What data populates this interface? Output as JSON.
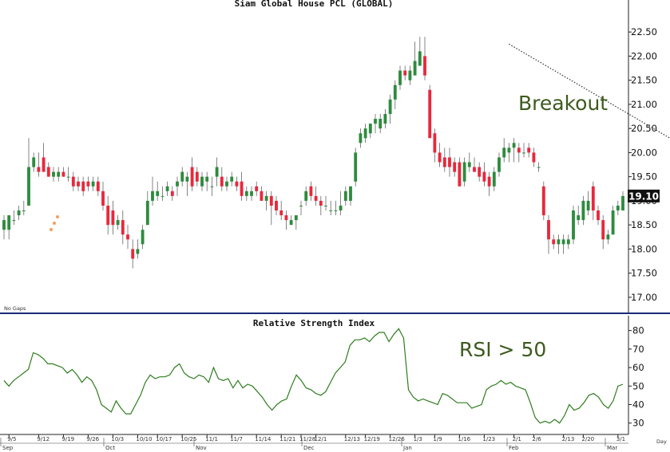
{
  "chart_data": [
    {
      "type": "candlestick",
      "title": "Siam Global House PCL (GLOBAL)",
      "y_ticks": [
        "22.50",
        "22.00",
        "21.50",
        "21.00",
        "20.50",
        "20.00",
        "19.50",
        "19.00",
        "18.50",
        "18.00",
        "17.50",
        "17.00"
      ],
      "ylim": [
        16.8,
        22.8
      ],
      "last_price_label": "19.10",
      "footnote": "No Gaps",
      "annotation": "Breakout",
      "colors": {
        "up": "#2e8b3e",
        "down": "#e8283c",
        "trend": "#333333",
        "arrow": "#3d6b22",
        "dots": "#f0a060",
        "label_bg": "#111111"
      },
      "trendline": {
        "from": [
          102,
          22.25
        ],
        "to": [
          162,
          18.65
        ]
      },
      "candles": [
        {
          "o": 18.4,
          "h": 18.7,
          "l": 18.2,
          "c": 18.6
        },
        {
          "o": 18.4,
          "h": 18.7,
          "l": 18.2,
          "c": 18.7
        },
        {
          "o": 18.6,
          "h": 18.8,
          "l": 18.5,
          "c": 18.6
        },
        {
          "o": 18.7,
          "h": 18.9,
          "l": 18.6,
          "c": 18.8
        },
        {
          "o": 18.8,
          "h": 19.0,
          "l": 18.7,
          "c": 18.8
        },
        {
          "o": 18.9,
          "h": 20.3,
          "l": 18.9,
          "c": 19.7
        },
        {
          "o": 19.7,
          "h": 20.0,
          "l": 19.6,
          "c": 19.9
        },
        {
          "o": 19.7,
          "h": 20.0,
          "l": 19.5,
          "c": 19.6
        },
        {
          "o": 19.9,
          "h": 20.2,
          "l": 19.6,
          "c": 19.6
        },
        {
          "o": 19.7,
          "h": 19.8,
          "l": 19.5,
          "c": 19.5
        },
        {
          "o": 19.5,
          "h": 19.7,
          "l": 19.4,
          "c": 19.6
        },
        {
          "o": 19.5,
          "h": 19.7,
          "l": 19.4,
          "c": 19.6
        },
        {
          "o": 19.6,
          "h": 19.7,
          "l": 19.5,
          "c": 19.5
        },
        {
          "o": 19.5,
          "h": 19.7,
          "l": 19.4,
          "c": 19.5
        },
        {
          "o": 19.5,
          "h": 19.6,
          "l": 19.2,
          "c": 19.3
        },
        {
          "o": 19.4,
          "h": 19.5,
          "l": 19.2,
          "c": 19.3
        },
        {
          "o": 19.4,
          "h": 19.5,
          "l": 19.1,
          "c": 19.2
        },
        {
          "o": 19.4,
          "h": 19.5,
          "l": 19.2,
          "c": 19.3
        },
        {
          "o": 19.3,
          "h": 19.5,
          "l": 19.2,
          "c": 19.4
        },
        {
          "o": 19.4,
          "h": 19.5,
          "l": 19.1,
          "c": 19.2
        },
        {
          "o": 19.2,
          "h": 19.4,
          "l": 18.8,
          "c": 18.9
        },
        {
          "o": 18.9,
          "h": 19.1,
          "l": 18.3,
          "c": 18.5
        },
        {
          "o": 18.8,
          "h": 19.0,
          "l": 18.3,
          "c": 18.5
        },
        {
          "o": 18.5,
          "h": 18.7,
          "l": 18.4,
          "c": 18.6
        },
        {
          "o": 18.6,
          "h": 18.8,
          "l": 18.1,
          "c": 18.3
        },
        {
          "o": 18.3,
          "h": 18.5,
          "l": 18.0,
          "c": 18.2
        },
        {
          "o": 18.0,
          "h": 18.2,
          "l": 17.6,
          "c": 17.8
        },
        {
          "o": 17.9,
          "h": 18.2,
          "l": 17.8,
          "c": 18.0
        },
        {
          "o": 18.1,
          "h": 18.5,
          "l": 18.0,
          "c": 18.4
        },
        {
          "o": 18.5,
          "h": 19.2,
          "l": 18.5,
          "c": 19.0
        },
        {
          "o": 19.0,
          "h": 19.5,
          "l": 18.9,
          "c": 19.2
        },
        {
          "o": 19.1,
          "h": 19.4,
          "l": 19.0,
          "c": 19.2
        },
        {
          "o": 19.1,
          "h": 19.3,
          "l": 19.0,
          "c": 19.1
        },
        {
          "o": 19.2,
          "h": 19.4,
          "l": 19.1,
          "c": 19.3
        },
        {
          "o": 19.2,
          "h": 19.3,
          "l": 19.0,
          "c": 19.1
        },
        {
          "o": 19.3,
          "h": 19.5,
          "l": 19.1,
          "c": 19.4
        },
        {
          "o": 19.4,
          "h": 19.7,
          "l": 19.3,
          "c": 19.6
        },
        {
          "o": 19.4,
          "h": 19.6,
          "l": 19.1,
          "c": 19.5
        },
        {
          "o": 19.7,
          "h": 19.9,
          "l": 19.2,
          "c": 19.3
        },
        {
          "o": 19.6,
          "h": 19.7,
          "l": 19.3,
          "c": 19.4
        },
        {
          "o": 19.3,
          "h": 19.6,
          "l": 19.2,
          "c": 19.5
        },
        {
          "o": 19.4,
          "h": 19.6,
          "l": 19.2,
          "c": 19.5
        },
        {
          "o": 19.3,
          "h": 19.5,
          "l": 19.1,
          "c": 19.3
        },
        {
          "o": 19.5,
          "h": 19.9,
          "l": 19.3,
          "c": 19.7
        },
        {
          "o": 19.5,
          "h": 19.7,
          "l": 19.2,
          "c": 19.3
        },
        {
          "o": 19.3,
          "h": 19.5,
          "l": 19.2,
          "c": 19.4
        },
        {
          "o": 19.4,
          "h": 19.6,
          "l": 19.3,
          "c": 19.5
        },
        {
          "o": 19.4,
          "h": 19.5,
          "l": 19.2,
          "c": 19.3
        },
        {
          "o": 19.4,
          "h": 19.6,
          "l": 19.0,
          "c": 19.1
        },
        {
          "o": 19.1,
          "h": 19.3,
          "l": 19.0,
          "c": 19.2
        },
        {
          "o": 19.1,
          "h": 19.3,
          "l": 19.0,
          "c": 19.2
        },
        {
          "o": 19.3,
          "h": 19.4,
          "l": 19.1,
          "c": 19.2
        },
        {
          "o": 19.2,
          "h": 19.3,
          "l": 19.0,
          "c": 19.0
        },
        {
          "o": 19.0,
          "h": 19.2,
          "l": 18.8,
          "c": 19.1
        },
        {
          "o": 19.1,
          "h": 19.2,
          "l": 18.5,
          "c": 18.9
        },
        {
          "o": 19.0,
          "h": 19.1,
          "l": 18.7,
          "c": 18.8
        },
        {
          "o": 18.8,
          "h": 19.0,
          "l": 18.6,
          "c": 18.7
        },
        {
          "o": 18.7,
          "h": 18.8,
          "l": 18.4,
          "c": 18.6
        },
        {
          "o": 18.5,
          "h": 18.7,
          "l": 18.5,
          "c": 18.6
        },
        {
          "o": 18.6,
          "h": 18.7,
          "l": 18.4,
          "c": 18.7
        },
        {
          "o": 18.9,
          "h": 19.0,
          "l": 18.7,
          "c": 18.9
        },
        {
          "o": 19.0,
          "h": 19.3,
          "l": 18.9,
          "c": 19.2
        },
        {
          "o": 19.3,
          "h": 19.4,
          "l": 19.0,
          "c": 19.1
        },
        {
          "o": 19.1,
          "h": 19.3,
          "l": 18.9,
          "c": 19.0
        },
        {
          "o": 19.0,
          "h": 19.1,
          "l": 18.7,
          "c": 18.9
        },
        {
          "o": 18.9,
          "h": 19.1,
          "l": 18.8,
          "c": 18.9
        },
        {
          "o": 18.8,
          "h": 19.0,
          "l": 18.7,
          "c": 18.8
        },
        {
          "o": 18.8,
          "h": 19.0,
          "l": 18.7,
          "c": 18.8
        },
        {
          "o": 18.8,
          "h": 19.2,
          "l": 18.7,
          "c": 18.9
        },
        {
          "o": 19.0,
          "h": 19.3,
          "l": 18.9,
          "c": 19.2
        },
        {
          "o": 19.0,
          "h": 19.3,
          "l": 18.9,
          "c": 19.3
        },
        {
          "o": 19.4,
          "h": 20.1,
          "l": 19.3,
          "c": 20.0
        },
        {
          "o": 20.2,
          "h": 20.5,
          "l": 20.1,
          "c": 20.4
        },
        {
          "o": 20.3,
          "h": 20.6,
          "l": 20.2,
          "c": 20.5
        },
        {
          "o": 20.4,
          "h": 20.6,
          "l": 20.3,
          "c": 20.6
        },
        {
          "o": 20.6,
          "h": 20.8,
          "l": 20.4,
          "c": 20.7
        },
        {
          "o": 20.5,
          "h": 20.8,
          "l": 20.4,
          "c": 20.7
        },
        {
          "o": 20.6,
          "h": 20.9,
          "l": 20.5,
          "c": 20.8
        },
        {
          "o": 20.8,
          "h": 21.2,
          "l": 20.6,
          "c": 21.1
        },
        {
          "o": 21.1,
          "h": 21.5,
          "l": 20.9,
          "c": 21.4
        },
        {
          "o": 21.4,
          "h": 21.8,
          "l": 21.3,
          "c": 21.7
        },
        {
          "o": 21.7,
          "h": 21.8,
          "l": 21.5,
          "c": 21.6
        },
        {
          "o": 21.5,
          "h": 21.8,
          "l": 21.4,
          "c": 21.7
        },
        {
          "o": 21.6,
          "h": 22.3,
          "l": 21.6,
          "c": 21.9
        },
        {
          "o": 21.8,
          "h": 22.4,
          "l": 21.8,
          "c": 22.1
        },
        {
          "o": 22.0,
          "h": 22.4,
          "l": 21.5,
          "c": 21.6
        },
        {
          "o": 21.3,
          "h": 21.4,
          "l": 20.3,
          "c": 20.3
        },
        {
          "o": 20.4,
          "h": 20.5,
          "l": 19.8,
          "c": 20.0
        },
        {
          "o": 20.0,
          "h": 20.2,
          "l": 19.7,
          "c": 19.8
        },
        {
          "o": 19.9,
          "h": 20.1,
          "l": 19.6,
          "c": 19.7
        },
        {
          "o": 19.9,
          "h": 20.1,
          "l": 19.5,
          "c": 19.7
        },
        {
          "o": 19.8,
          "h": 19.9,
          "l": 19.5,
          "c": 19.6
        },
        {
          "o": 19.8,
          "h": 19.9,
          "l": 19.3,
          "c": 19.3
        },
        {
          "o": 19.4,
          "h": 19.9,
          "l": 19.3,
          "c": 19.8
        },
        {
          "o": 19.7,
          "h": 20.0,
          "l": 19.6,
          "c": 19.8
        },
        {
          "o": 19.7,
          "h": 19.9,
          "l": 19.6,
          "c": 19.6
        },
        {
          "o": 19.7,
          "h": 19.8,
          "l": 19.4,
          "c": 19.5
        },
        {
          "o": 19.6,
          "h": 19.8,
          "l": 19.3,
          "c": 19.4
        },
        {
          "o": 19.5,
          "h": 19.6,
          "l": 19.1,
          "c": 19.3
        },
        {
          "o": 19.3,
          "h": 19.7,
          "l": 19.2,
          "c": 19.6
        },
        {
          "o": 19.6,
          "h": 20.0,
          "l": 19.5,
          "c": 19.9
        },
        {
          "o": 19.9,
          "h": 20.3,
          "l": 19.8,
          "c": 20.1
        },
        {
          "o": 20.0,
          "h": 20.2,
          "l": 19.8,
          "c": 20.1
        },
        {
          "o": 20.1,
          "h": 20.3,
          "l": 19.8,
          "c": 20.2
        },
        {
          "o": 20.1,
          "h": 20.2,
          "l": 19.8,
          "c": 20.0
        },
        {
          "o": 20.0,
          "h": 20.2,
          "l": 19.9,
          "c": 20.0
        },
        {
          "o": 20.1,
          "h": 20.2,
          "l": 19.9,
          "c": 20.0
        },
        {
          "o": 20.0,
          "h": 20.1,
          "l": 19.7,
          "c": 19.8
        },
        {
          "o": 19.7,
          "h": 19.8,
          "l": 19.6,
          "c": 19.7
        },
        {
          "o": 19.3,
          "h": 19.4,
          "l": 18.6,
          "c": 18.7
        },
        {
          "o": 18.6,
          "h": 18.7,
          "l": 17.9,
          "c": 18.2
        },
        {
          "o": 18.2,
          "h": 18.3,
          "l": 18.0,
          "c": 18.1
        },
        {
          "o": 18.1,
          "h": 18.3,
          "l": 17.9,
          "c": 18.2
        },
        {
          "o": 18.1,
          "h": 18.3,
          "l": 17.9,
          "c": 18.2
        },
        {
          "o": 18.1,
          "h": 18.3,
          "l": 18.0,
          "c": 18.2
        },
        {
          "o": 18.2,
          "h": 18.9,
          "l": 18.1,
          "c": 18.8
        },
        {
          "o": 18.6,
          "h": 18.9,
          "l": 18.5,
          "c": 18.7
        },
        {
          "o": 18.6,
          "h": 19.1,
          "l": 18.5,
          "c": 19.0
        },
        {
          "o": 18.8,
          "h": 19.2,
          "l": 18.7,
          "c": 19.0
        },
        {
          "o": 19.3,
          "h": 19.4,
          "l": 18.6,
          "c": 18.8
        },
        {
          "o": 18.8,
          "h": 18.9,
          "l": 18.5,
          "c": 18.6
        },
        {
          "o": 18.6,
          "h": 18.7,
          "l": 18.0,
          "c": 18.2
        },
        {
          "o": 18.2,
          "h": 18.4,
          "l": 18.1,
          "c": 18.3
        },
        {
          "o": 18.3,
          "h": 18.9,
          "l": 18.3,
          "c": 18.8
        },
        {
          "o": 18.8,
          "h": 19.0,
          "l": 18.7,
          "c": 18.9
        },
        {
          "o": 18.8,
          "h": 19.2,
          "l": 18.8,
          "c": 19.1
        }
      ]
    },
    {
      "type": "line",
      "title": "Relative Strength Index",
      "y_ticks": [
        "80",
        "70",
        "60",
        "50",
        "40",
        "30"
      ],
      "ylim": [
        26,
        82
      ],
      "annotation": "RSI > 50",
      "colors": {
        "line": "#2e7d1e"
      },
      "values": [
        53,
        50,
        53,
        55,
        57,
        59,
        68,
        67,
        65,
        62,
        62,
        61,
        60,
        57,
        59,
        56,
        52,
        55,
        53,
        48,
        40,
        38,
        36,
        42,
        38,
        35,
        35,
        40,
        45,
        52,
        56,
        54,
        55,
        55,
        56,
        60,
        62,
        57,
        55,
        54,
        56,
        55,
        52,
        60,
        54,
        53,
        54,
        49,
        53,
        49,
        51,
        50,
        47,
        44,
        40,
        37,
        40,
        42,
        43,
        50,
        56,
        53,
        49,
        48,
        46,
        45,
        47,
        52,
        57,
        60,
        63,
        72,
        75,
        75,
        76,
        74,
        77,
        79,
        79,
        74,
        78,
        81,
        76,
        48,
        44,
        42,
        43,
        42,
        41,
        40,
        46,
        45,
        43,
        41,
        41,
        41,
        38,
        39,
        40,
        48,
        50,
        51,
        53,
        51,
        52,
        50,
        49,
        48,
        41,
        33,
        30,
        31,
        30,
        32,
        30,
        34,
        40,
        37,
        38,
        41,
        45,
        46,
        44,
        40,
        38,
        42,
        50,
        51
      ]
    }
  ],
  "x_axis": {
    "day_labels": [
      "9/5",
      "9/12",
      "9/19",
      "9/26",
      "10/3",
      "10/10",
      "10/17",
      "10/25",
      "11/1",
      "11/7",
      "11/14",
      "11/21",
      "11/28",
      "12/1",
      "12/13",
      "12/19",
      "12/26",
      "1/3",
      "1/9",
      "1/16",
      "1/23",
      "2/1",
      "2/6",
      "2/13",
      "2/20",
      "3/1"
    ],
    "month_labels": [
      "Sep",
      "Oct",
      "Nov",
      "Dec",
      "Jan",
      "Feb",
      "Mar"
    ],
    "unit_label": "Day"
  }
}
